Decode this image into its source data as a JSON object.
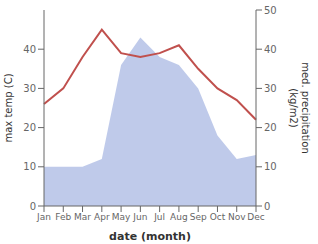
{
  "chart_data": {
    "type": "line",
    "xlabel": "date (month)",
    "ylabel": "max temp (C)",
    "y2label": "med. precipitation\n(kg/m2)",
    "categories": [
      "Jan",
      "Feb",
      "Mar",
      "Apr",
      "May",
      "Jun",
      "Jul",
      "Aug",
      "Sep",
      "Oct",
      "Nov",
      "Dec"
    ],
    "series": [
      {
        "type": "area",
        "axis": "y2",
        "color": "#b8c4e8",
        "values": [
          10,
          10,
          10,
          12,
          36,
          43,
          38,
          36,
          30,
          18,
          12,
          13
        ]
      },
      {
        "type": "line",
        "color": "#c0504d",
        "values": [
          26,
          30,
          38,
          45,
          39,
          38,
          39,
          41,
          35,
          30,
          27,
          22
        ]
      }
    ],
    "ylim": [
      0,
      50
    ],
    "yticks": [
      0,
      10,
      20,
      30,
      40
    ],
    "y2lim": [
      0,
      50
    ],
    "y2ticks": [
      0,
      10,
      20,
      30,
      40,
      50
    ],
    "grid": false
  }
}
